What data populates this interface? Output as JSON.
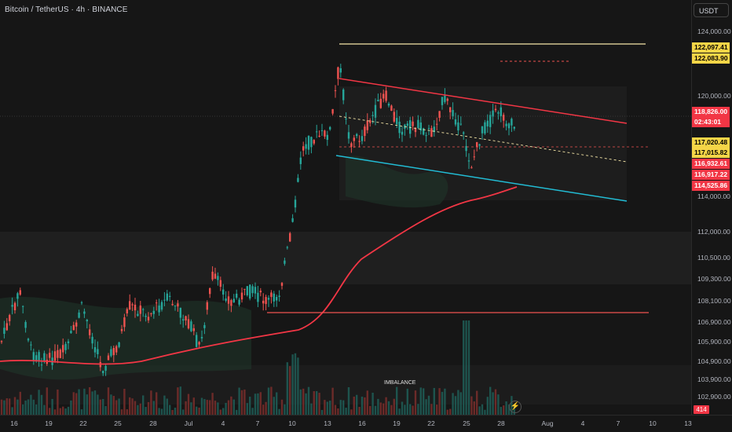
{
  "header": {
    "title": "Bitcoin / TetherUS · 4h · BINANCE"
  },
  "currency_button": "USDT",
  "price_ticks": [
    "124,000.00",
    "120,000.00",
    "114,000.00",
    "112,000.00",
    "110,500.00",
    "109,300.00",
    "108,100.00",
    "106,900.00",
    "105,900.00",
    "104,900.00",
    "103,900.00",
    "102,900.00"
  ],
  "price_labels": [
    {
      "text": "122,097.41",
      "bg": "#f5d547",
      "fg": "#000000"
    },
    {
      "text": "122,083.90",
      "bg": "#f5d547",
      "fg": "#000000"
    },
    {
      "text": "118,826.00",
      "bg": "#f23645",
      "fg": "#ffffff"
    },
    {
      "text": "02:43:01",
      "bg": "#f23645",
      "fg": "#ffffff"
    },
    {
      "text": "117,020.48",
      "bg": "#f5d547",
      "fg": "#000000"
    },
    {
      "text": "117,015.82",
      "bg": "#f5d547",
      "fg": "#000000"
    },
    {
      "text": "116,932.61",
      "bg": "#f23645",
      "fg": "#ffffff"
    },
    {
      "text": "116,917.22",
      "bg": "#f23645",
      "fg": "#ffffff"
    },
    {
      "text": "114,525.86",
      "bg": "#f23645",
      "fg": "#ffffff"
    }
  ],
  "time_ticks": [
    "16",
    "19",
    "22",
    "25",
    "28",
    "Jul",
    "4",
    "7",
    "10",
    "13",
    "16",
    "19",
    "22",
    "25",
    "28",
    "Aug",
    "4",
    "7",
    "10",
    "13"
  ],
  "volume_label": "414",
  "annotation": "IMBALANCE",
  "colors": {
    "up": "#26a69a",
    "down": "#ef5350",
    "channel_top": "#f23645",
    "channel_bottom": "#22bcd4",
    "ma": "#f23645",
    "high_line": "#f5e6a8"
  }
}
